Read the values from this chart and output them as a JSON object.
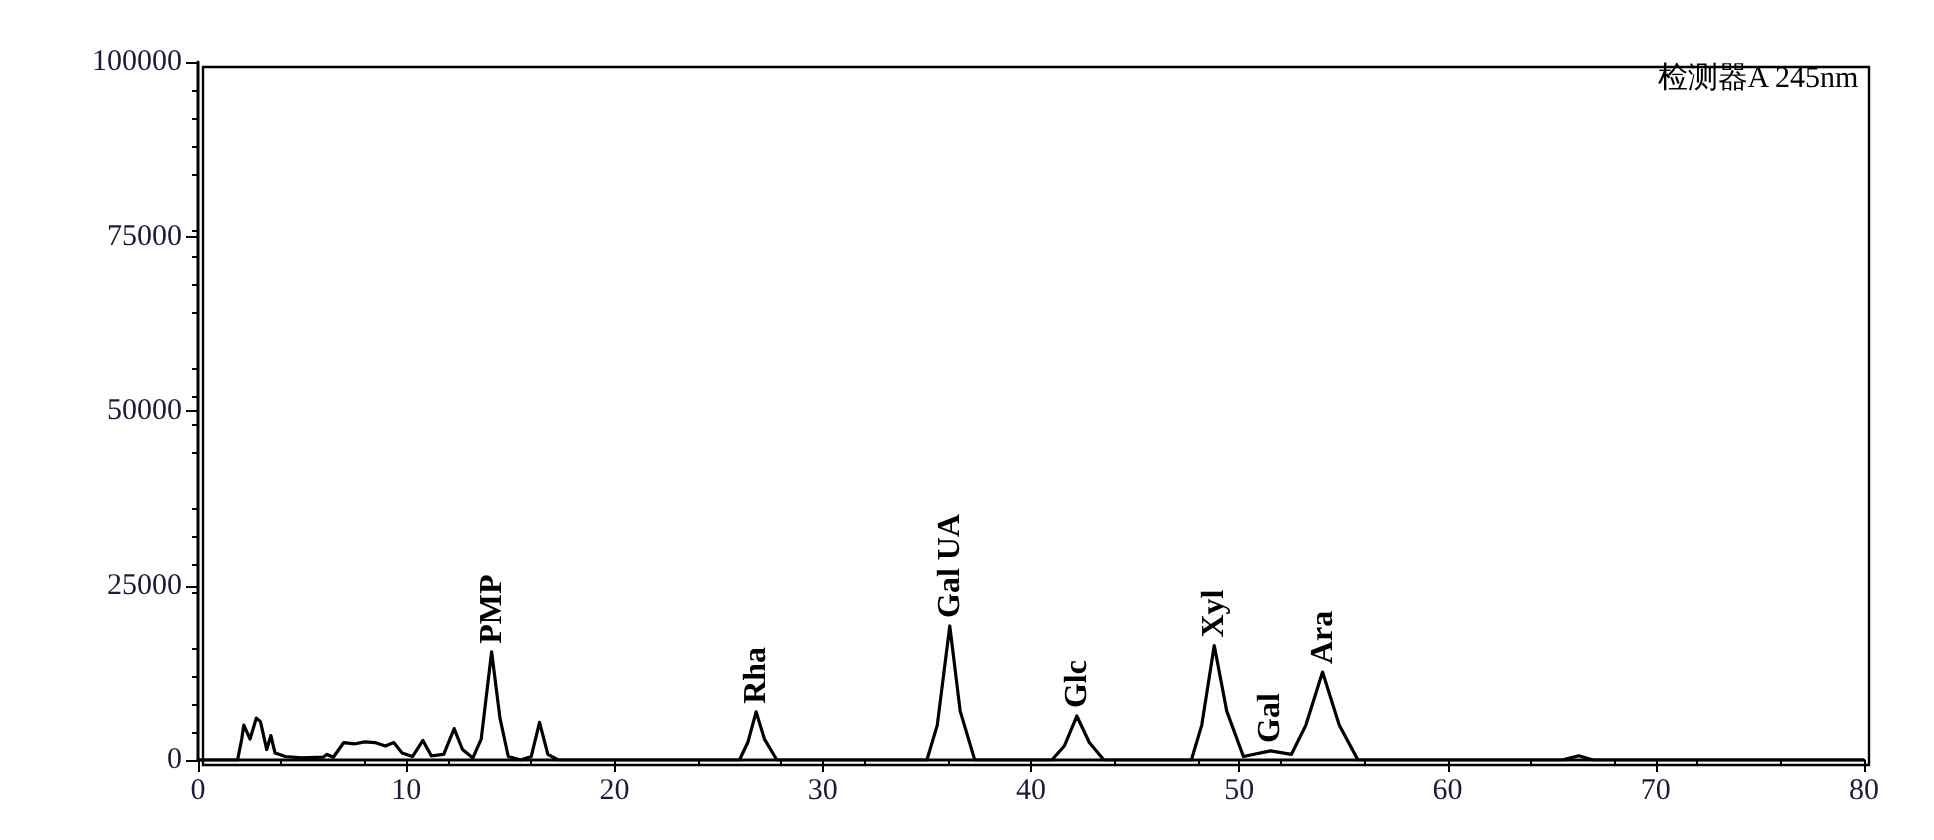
{
  "chart_data": {
    "type": "line",
    "color": "#000000",
    "x": [
      0,
      1.9,
      2.1,
      2.2,
      2.5,
      2.8,
      3.0,
      3.3,
      3.5,
      3.7,
      4.2,
      5,
      6,
      6.2,
      6.5,
      7,
      7.5,
      8,
      8.5,
      9,
      9.4,
      9.8,
      10.3,
      10.8,
      11.2,
      11.8,
      12.3,
      12.7,
      13.2,
      13.6,
      14.1,
      14.5,
      14.9,
      15.5,
      16.0,
      16.4,
      16.8,
      17.3,
      26,
      26.4,
      26.8,
      27.2,
      27.8,
      35,
      35.5,
      36.1,
      36.6,
      37.3,
      41,
      41.6,
      42.2,
      42.8,
      43.5,
      47.7,
      48.2,
      48.8,
      49.4,
      50.2,
      51.5,
      52.5,
      53.2,
      54,
      54.8,
      55.7,
      65.5,
      66.3,
      67,
      80
    ],
    "values": [
      0,
      0,
      3000,
      5000,
      3000,
      6000,
      5500,
      1500,
      3500,
      1000,
      500,
      300,
      400,
      800,
      400,
      2500,
      2300,
      2600,
      2500,
      2000,
      2500,
      1000,
      500,
      2800,
      600,
      800,
      4500,
      1500,
      300,
      3000,
      15500,
      6000,
      500,
      0,
      500,
      5400,
      800,
      0,
      0,
      2500,
      6900,
      3000,
      0,
      0,
      5000,
      19200,
      7000,
      0,
      0,
      2000,
      6300,
      2500,
      0,
      0,
      5000,
      16400,
      7000,
      500,
      1300,
      800,
      5000,
      12600,
      5000,
      0,
      0,
      600,
      0,
      0
    ],
    "xlim": [
      0,
      80
    ],
    "xticks": [
      0,
      10,
      20,
      30,
      40,
      50,
      60,
      70,
      80
    ],
    "ylim": [
      0,
      100000
    ],
    "yticks": [
      0,
      25000,
      50000,
      75000,
      100000
    ],
    "grid": false,
    "marker": "none",
    "line_style": "solid",
    "annotations": [
      {
        "text": "PMP",
        "x": 14.1,
        "y": 15500
      },
      {
        "text": "Rha",
        "x": 26.8,
        "y": 6900
      },
      {
        "text": "Gal UA",
        "x": 36.1,
        "y": 19200
      },
      {
        "text": "Glc",
        "x": 42.2,
        "y": 6300
      },
      {
        "text": "Xyl",
        "x": 48.8,
        "y": 16400
      },
      {
        "text": "Gal",
        "x": 51.5,
        "y": 1300
      },
      {
        "text": "Ara",
        "x": 54,
        "y": 12600
      },
      "检测器A 245nm"
    ]
  }
}
